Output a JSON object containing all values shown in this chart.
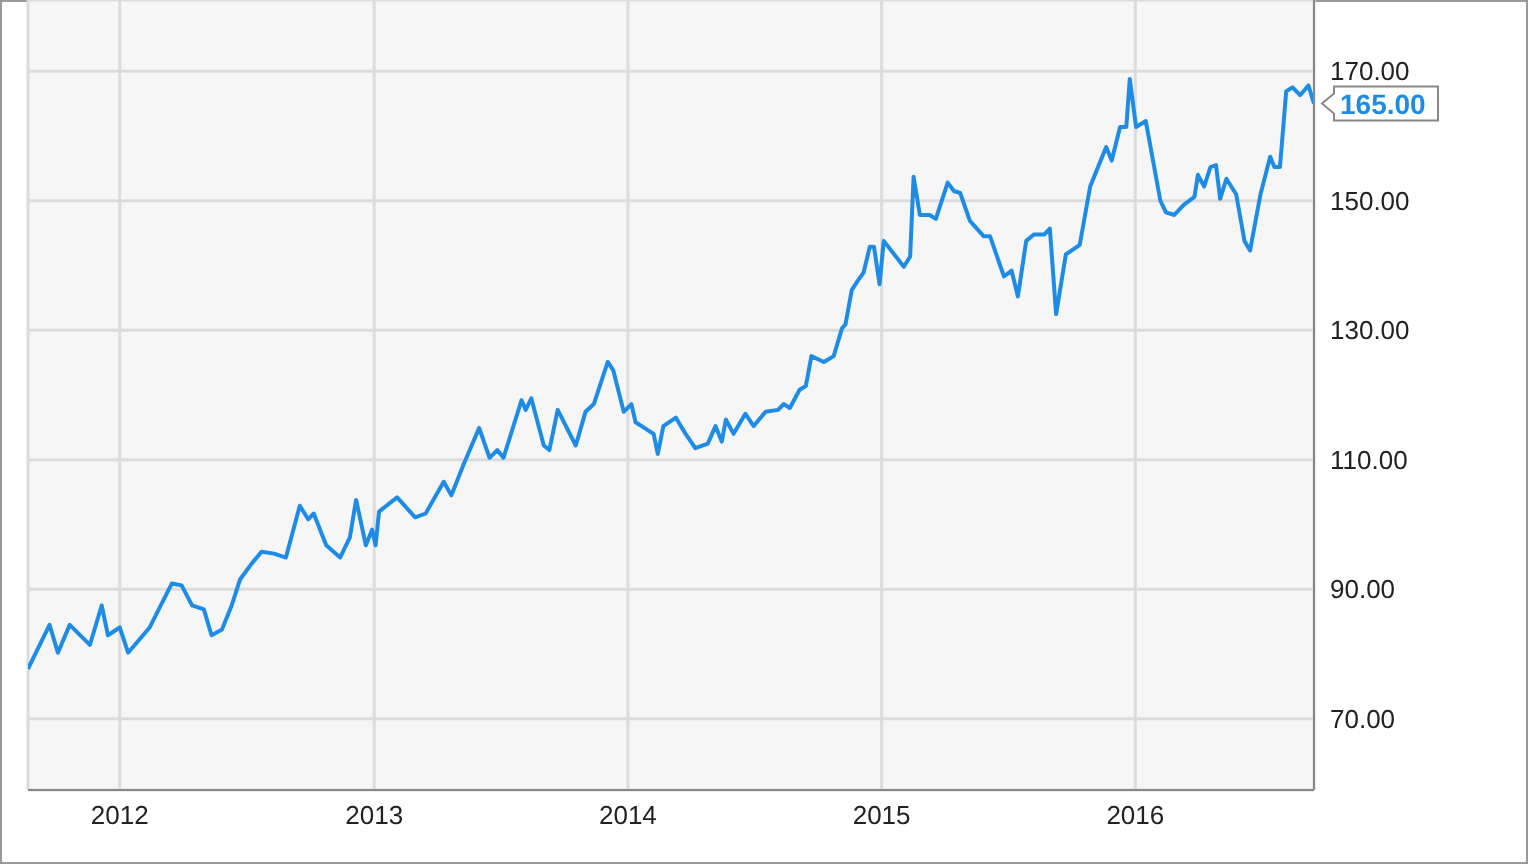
{
  "chart_data": {
    "type": "line",
    "color": "#1e8ce6",
    "x": [
      "2011-08-22",
      "2011-09-22",
      "2011-10-04",
      "2011-10-21",
      "2011-11-19",
      "2011-12-06",
      "2011-12-15",
      "2012-01-01",
      "2012-01-13",
      "2012-02-13",
      "2012-03-16",
      "2012-03-30",
      "2012-04-14",
      "2012-05-01",
      "2012-05-12",
      "2012-05-27",
      "2012-06-10",
      "2012-06-22",
      "2012-07-09",
      "2012-07-23",
      "2012-08-10",
      "2012-08-27",
      "2012-09-16",
      "2012-09-28",
      "2012-10-06",
      "2012-10-24",
      "2012-11-13",
      "2012-11-27",
      "2012-12-06",
      "2012-12-20",
      "2012-12-29",
      "2013-01-03",
      "2013-01-08",
      "2013-02-03",
      "2013-03-01",
      "2013-03-16",
      "2013-04-11",
      "2013-04-22",
      "2013-05-09",
      "2013-06-01",
      "2013-06-16",
      "2013-06-27",
      "2013-07-06",
      "2013-08-01",
      "2013-08-07",
      "2013-08-15",
      "2013-09-02",
      "2013-09-10",
      "2013-09-22",
      "2013-10-18",
      "2013-11-01",
      "2013-11-13",
      "2013-12-03",
      "2013-12-11",
      "2013-12-26",
      "2014-01-06",
      "2014-01-12",
      "2014-02-07",
      "2014-02-13",
      "2014-02-21",
      "2014-03-11",
      "2014-03-25",
      "2014-04-08",
      "2014-04-26",
      "2014-05-07",
      "2014-05-16",
      "2014-05-22",
      "2014-06-02",
      "2014-06-19",
      "2014-07-01",
      "2014-07-18",
      "2014-08-05",
      "2014-08-13",
      "2014-08-22",
      "2014-09-05",
      "2014-09-14",
      "2014-09-22",
      "2014-10-10",
      "2014-10-24",
      "2014-11-05",
      "2014-11-10",
      "2014-11-19",
      "2014-11-28",
      "2014-12-06",
      "2014-12-15",
      "2014-12-21",
      "2014-12-29",
      "2015-01-04",
      "2015-02-02",
      "2015-02-11",
      "2015-02-16",
      "2015-02-25",
      "2015-03-11",
      "2015-03-20",
      "2015-04-06",
      "2015-04-15",
      "2015-04-24",
      "2015-05-08",
      "2015-05-28",
      "2015-06-06",
      "2015-06-26",
      "2015-07-07",
      "2015-07-16",
      "2015-07-28",
      "2015-08-08",
      "2015-08-23",
      "2015-08-31",
      "2015-09-09",
      "2015-09-23",
      "2015-10-13",
      "2015-10-28",
      "2015-11-20",
      "2015-11-28",
      "2015-12-10",
      "2015-12-19",
      "2015-12-24",
      "2016-01-02",
      "2016-01-16",
      "2016-02-06",
      "2016-02-14",
      "2016-02-26",
      "2016-03-11",
      "2016-03-26",
      "2016-03-31",
      "2016-04-09",
      "2016-04-18",
      "2016-04-26",
      "2016-05-02",
      "2016-05-11",
      "2016-05-25",
      "2016-06-06",
      "2016-06-14",
      "2016-06-29",
      "2016-07-13",
      "2016-07-19",
      "2016-07-27",
      "2016-08-05",
      "2016-08-14",
      "2016-08-25",
      "2016-09-06",
      "2016-09-14"
    ],
    "values": [
      77.7,
      84.5,
      80.2,
      84.5,
      81.4,
      87.5,
      82.9,
      84.1,
      80.2,
      84.1,
      90.9,
      90.6,
      87.5,
      86.9,
      82.9,
      83.8,
      87.5,
      91.5,
      94.0,
      95.8,
      95.5,
      94.9,
      102.9,
      100.8,
      101.7,
      96.8,
      94.9,
      98.0,
      103.8,
      96.8,
      99.2,
      96.8,
      102.0,
      104.2,
      101.1,
      101.7,
      106.6,
      104.5,
      109.1,
      114.9,
      110.3,
      111.5,
      110.3,
      119.2,
      117.7,
      119.5,
      112.2,
      111.5,
      117.7,
      112.2,
      117.4,
      118.6,
      125.1,
      123.8,
      117.4,
      118.6,
      115.8,
      114.0,
      110.9,
      115.2,
      116.5,
      114.0,
      111.8,
      112.5,
      115.2,
      112.8,
      116.2,
      114.0,
      117.1,
      115.2,
      117.4,
      117.7,
      118.6,
      118.0,
      120.8,
      121.4,
      126.0,
      125.1,
      126.0,
      130.3,
      130.9,
      136.2,
      137.7,
      138.9,
      142.9,
      142.9,
      137.1,
      143.8,
      139.8,
      141.4,
      153.7,
      147.8,
      147.8,
      147.2,
      152.8,
      151.5,
      151.2,
      146.9,
      144.5,
      144.5,
      138.3,
      139.2,
      135.2,
      143.8,
      144.8,
      144.8,
      145.7,
      132.5,
      141.7,
      143.2,
      152.2,
      158.3,
      156.2,
      161.4,
      161.4,
      168.8,
      161.4,
      162.3,
      150.0,
      148.2,
      147.8,
      149.4,
      150.6,
      154.0,
      152.2,
      155.2,
      155.5,
      150.3,
      153.4,
      151.0,
      143.8,
      142.3,
      151.0,
      156.8,
      155.2,
      155.2,
      166.9,
      167.5,
      166.3,
      167.8,
      165.0
    ],
    "xlim": [
      "2011-08-22",
      "2016-09-14"
    ],
    "xticks": [
      "2012",
      "2013",
      "2014",
      "2015",
      "2016"
    ],
    "ylim": [
      59,
      181
    ],
    "yticks": [
      {
        "value": 70,
        "label": "70.00"
      },
      {
        "value": 90,
        "label": "90.00"
      },
      {
        "value": 110,
        "label": "110.00"
      },
      {
        "value": 130,
        "label": "130.00"
      },
      {
        "value": 150,
        "label": "150.00"
      },
      {
        "value": 170,
        "label": "170.00"
      }
    ],
    "grid": true,
    "marker": "none",
    "line_style": "solid",
    "annotations": [
      {
        "text": "165.00",
        "x": "2016-09-14",
        "y": 165
      }
    ]
  }
}
